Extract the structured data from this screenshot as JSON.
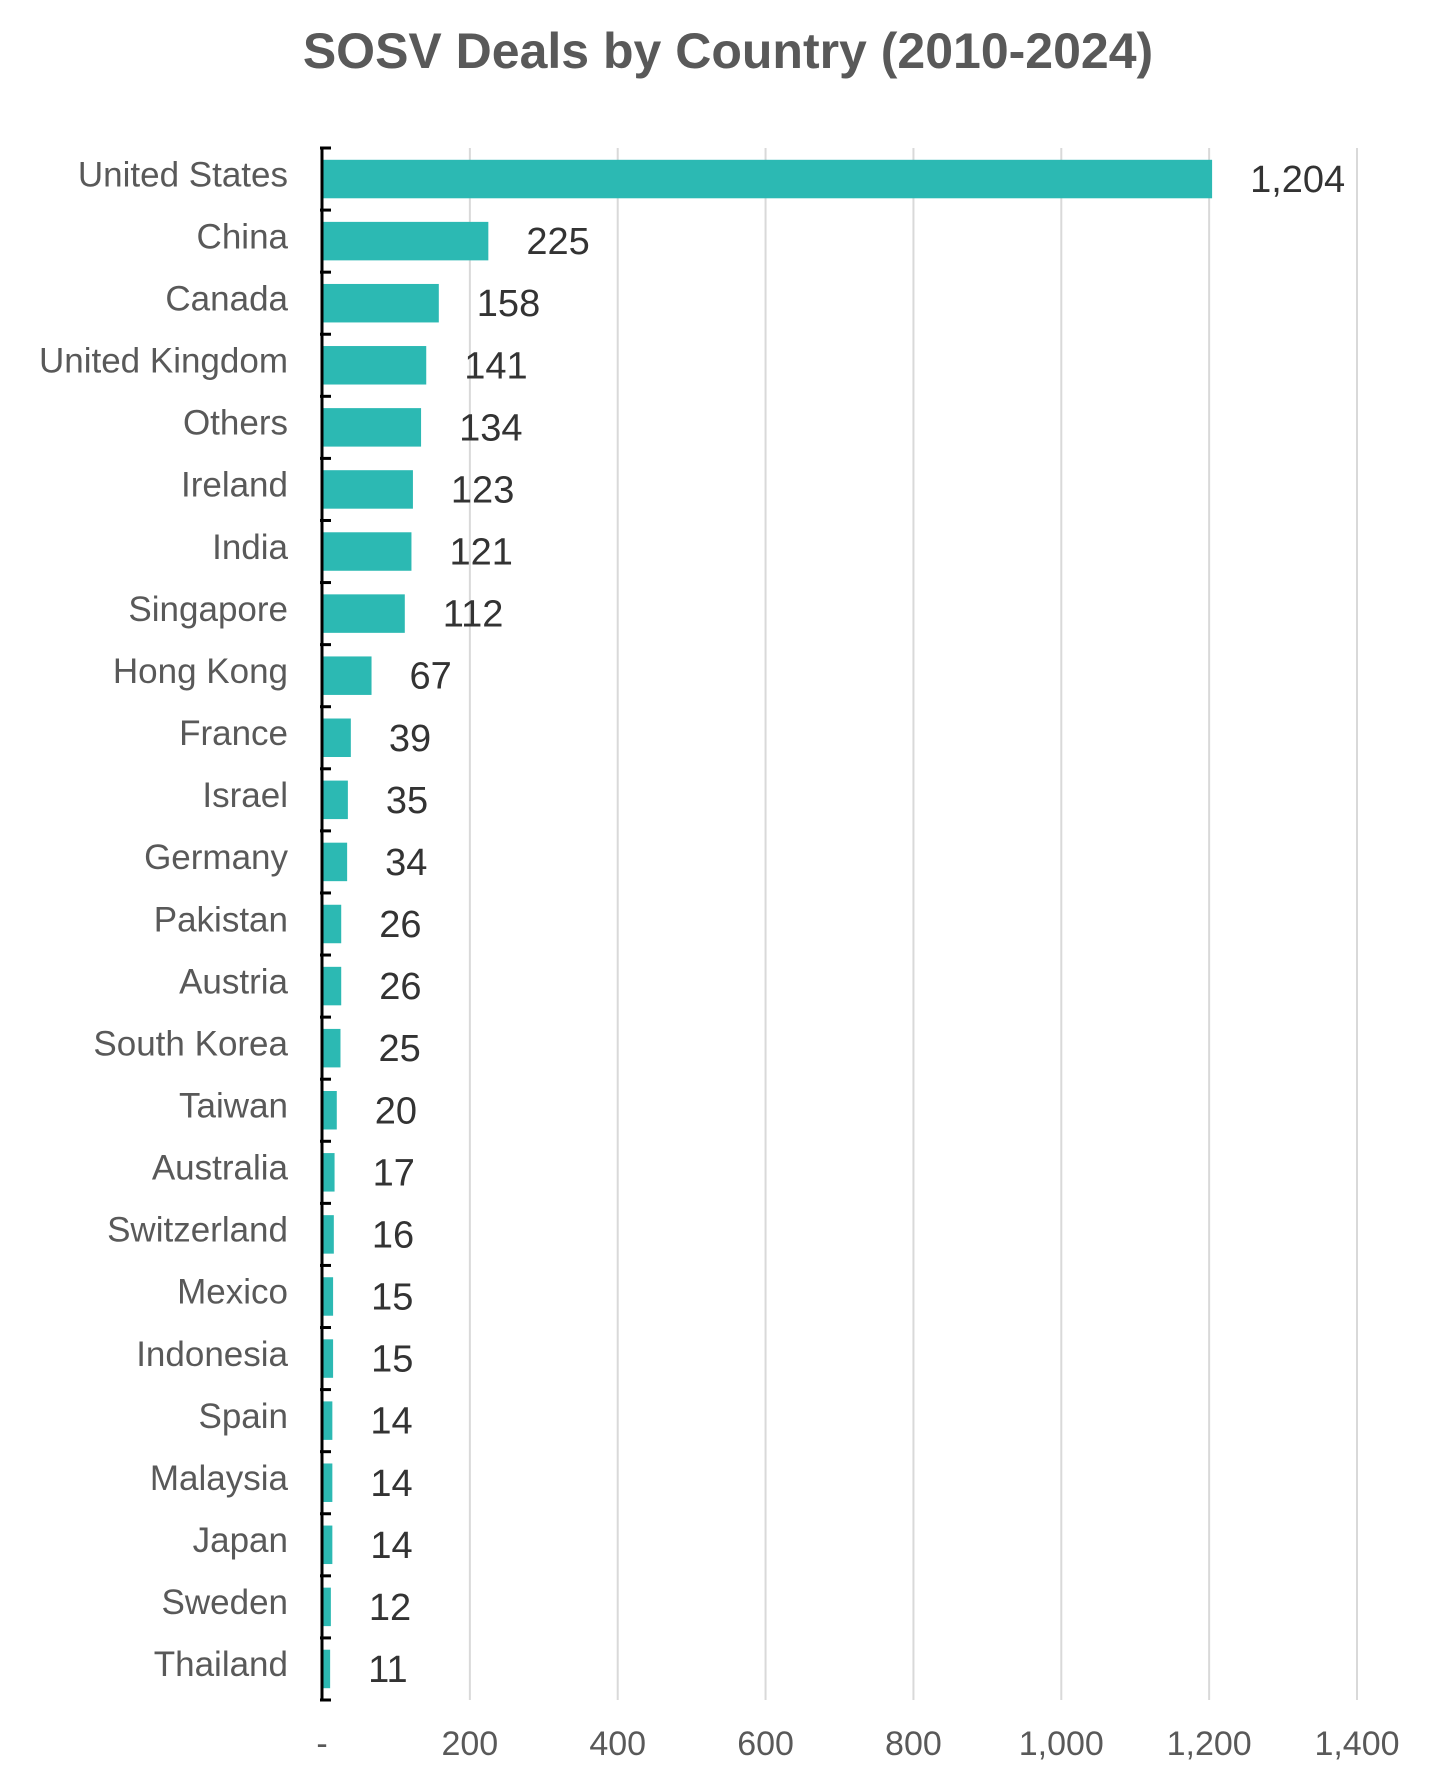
{
  "chart_data": {
    "type": "bar",
    "orientation": "horizontal",
    "title": "SOSV Deals by Country (2010-2024)",
    "categories": [
      "United States",
      "China",
      "Canada",
      "United Kingdom",
      "Others",
      "Ireland",
      "India",
      "Singapore",
      "Hong Kong",
      "France",
      "Israel",
      "Germany",
      "Pakistan",
      "Austria",
      "South Korea",
      "Taiwan",
      "Australia",
      "Switzerland",
      "Mexico",
      "Indonesia",
      "Spain",
      "Malaysia",
      "Japan",
      "Sweden",
      "Thailand"
    ],
    "values": [
      1204,
      225,
      158,
      141,
      134,
      123,
      121,
      112,
      67,
      39,
      35,
      34,
      26,
      26,
      25,
      20,
      17,
      16,
      15,
      15,
      14,
      14,
      14,
      12,
      11
    ],
    "value_labels": [
      "1,204",
      "225",
      "158",
      "141",
      "134",
      "123",
      "121",
      "112",
      "67",
      "39",
      "35",
      "34",
      "26",
      "26",
      "25",
      "20",
      "17",
      "16",
      "15",
      "15",
      "14",
      "14",
      "14",
      "12",
      "11"
    ],
    "x_ticks": [
      0,
      200,
      400,
      600,
      800,
      1000,
      1200,
      1400
    ],
    "x_tick_labels": [
      "-",
      "200",
      "400",
      "600",
      "800",
      "1,000",
      "1,200",
      "1,400"
    ],
    "xlim": [
      0,
      1400
    ],
    "xlabel": "",
    "ylabel": "",
    "grid": "vertical",
    "legend": "none",
    "colors": {
      "bar": "#2cb9b3",
      "grid": "#d9d9d9",
      "axis": "#000000",
      "title": "#595959",
      "category_text": "#595959",
      "value_text": "#333333"
    }
  }
}
